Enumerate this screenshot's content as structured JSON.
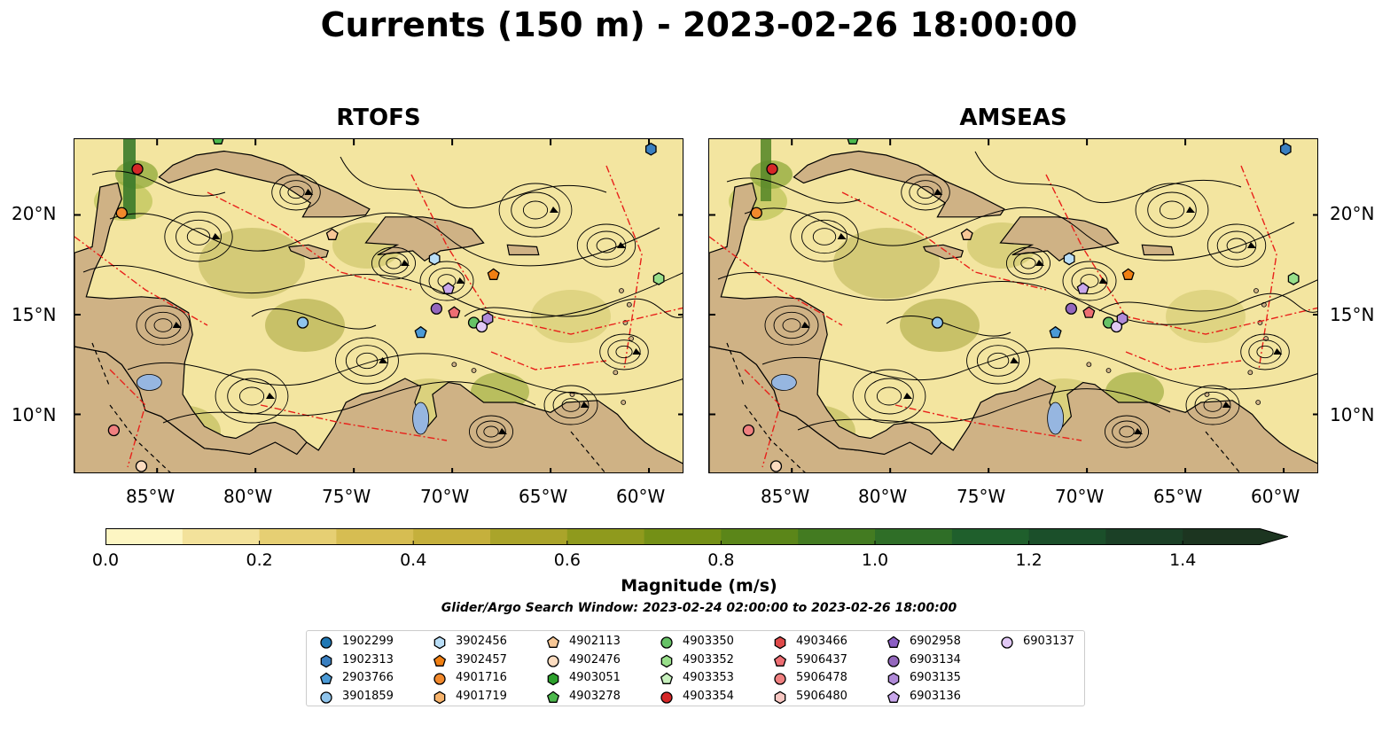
{
  "title": "Currents (150 m) - 2023-02-26 18:00:00",
  "panels": [
    {
      "title": "RTOFS"
    },
    {
      "title": "AMSEAS"
    }
  ],
  "lon_labels": [
    "85°W",
    "80°W",
    "75°W",
    "70°W",
    "65°W",
    "60°W"
  ],
  "lat_labels": [
    "20°N",
    "15°N",
    "10°N"
  ],
  "colorbar": {
    "label": "Magnitude (m/s)",
    "ticks": [
      "0.0",
      "0.2",
      "0.4",
      "0.6",
      "0.8",
      "1.0",
      "1.2",
      "1.4"
    ],
    "min": 0.0,
    "max": 1.5,
    "extend": "max",
    "colors": [
      "#fdf6c3",
      "#f3e29b",
      "#e6cf73",
      "#d6bd52",
      "#c5b03c",
      "#aaa42a",
      "#8f9a1d",
      "#749016",
      "#5b8619",
      "#437b21",
      "#2f6e27",
      "#1f5f2c",
      "#1b4f2a",
      "#1b4026",
      "#1c3520"
    ]
  },
  "search_window": "Glider/Argo Search Window: 2023-02-24 02:00:00 to 2023-02-26 18:00:00",
  "legend": [
    {
      "id": "1902299",
      "marker": "circle",
      "color": "#1f77b4"
    },
    {
      "id": "1902313",
      "marker": "hexagon",
      "color": "#3a7fc0"
    },
    {
      "id": "2903766",
      "marker": "pentagon",
      "color": "#4b9ad6"
    },
    {
      "id": "3901859",
      "marker": "circle",
      "color": "#8fc4ec"
    },
    {
      "id": "3902456",
      "marker": "hexagon",
      "color": "#b9def7"
    },
    {
      "id": "3902457",
      "marker": "pentagon",
      "color": "#f07f12"
    },
    {
      "id": "4901716",
      "marker": "circle",
      "color": "#f2892c"
    },
    {
      "id": "4901719",
      "marker": "hexagon",
      "color": "#f7b36b"
    },
    {
      "id": "4902113",
      "marker": "pentagon",
      "color": "#f7c796"
    },
    {
      "id": "4902476",
      "marker": "circle",
      "color": "#fcdcc0"
    },
    {
      "id": "4903051",
      "marker": "hexagon",
      "color": "#2ca02c"
    },
    {
      "id": "4903278",
      "marker": "pentagon",
      "color": "#4cb84c"
    },
    {
      "id": "4903350",
      "marker": "circle",
      "color": "#66c266"
    },
    {
      "id": "4903352",
      "marker": "hexagon",
      "color": "#98df8a"
    },
    {
      "id": "4903353",
      "marker": "pentagon",
      "color": "#c7f0bd"
    },
    {
      "id": "4903354",
      "marker": "circle",
      "color": "#d62728"
    },
    {
      "id": "4903466",
      "marker": "hexagon",
      "color": "#df4a4a"
    },
    {
      "id": "5906437",
      "marker": "pentagon",
      "color": "#ee6e73"
    },
    {
      "id": "5906478",
      "marker": "circle",
      "color": "#f08080"
    },
    {
      "id": "5906480",
      "marker": "hexagon",
      "color": "#f8c7c2"
    },
    {
      "id": "6902958",
      "marker": "pentagon",
      "color": "#8c5fc5"
    },
    {
      "id": "6903134",
      "marker": "circle",
      "color": "#9467bd"
    },
    {
      "id": "6903135",
      "marker": "hexagon",
      "color": "#b08ad8"
    },
    {
      "id": "6903136",
      "marker": "pentagon",
      "color": "#c9a7ec"
    },
    {
      "id": "6903137",
      "marker": "circle",
      "color": "#e1c8f5"
    }
  ],
  "floats": [
    {
      "id": "4903354",
      "lon": -86.0,
      "lat": 22.3
    },
    {
      "id": "4901716",
      "lon": -86.8,
      "lat": 20.1
    },
    {
      "id": "5906478",
      "lon": -87.2,
      "lat": 9.2
    },
    {
      "id": "4902476",
      "lon": -85.8,
      "lat": 7.4
    },
    {
      "id": "4903278",
      "lon": -81.9,
      "lat": 23.8
    },
    {
      "id": "1902313",
      "lon": -59.9,
      "lat": 23.3
    },
    {
      "id": "4902113",
      "lon": -76.1,
      "lat": 19.0
    },
    {
      "id": "3902456",
      "lon": -70.9,
      "lat": 17.8
    },
    {
      "id": "3901859",
      "lon": -77.6,
      "lat": 14.6
    },
    {
      "id": "3902457",
      "lon": -67.9,
      "lat": 17.0
    },
    {
      "id": "4903352",
      "lon": -59.5,
      "lat": 16.8
    },
    {
      "id": "2903766",
      "lon": -71.6,
      "lat": 14.1
    },
    {
      "id": "6903136",
      "lon": -70.2,
      "lat": 16.3
    },
    {
      "id": "6903134",
      "lon": -70.8,
      "lat": 15.3
    },
    {
      "id": "5906437",
      "lon": -69.9,
      "lat": 15.1
    },
    {
      "id": "4903350",
      "lon": -68.9,
      "lat": 14.6
    },
    {
      "id": "6903137",
      "lon": -68.5,
      "lat": 14.4
    },
    {
      "id": "6903135",
      "lon": -68.2,
      "lat": 14.8
    }
  ]
}
